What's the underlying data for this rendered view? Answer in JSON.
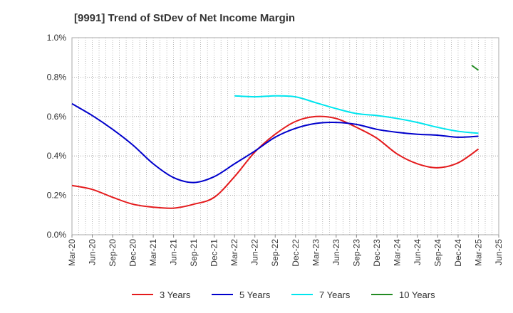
{
  "chart_data": {
    "type": "line",
    "title": "[9991]  Trend of StDev of Net Income Margin",
    "xlabel": "",
    "ylabel": "",
    "x": [
      "Mar-20",
      "Jun-20",
      "Sep-20",
      "Dec-20",
      "Mar-21",
      "Jun-21",
      "Sep-21",
      "Dec-21",
      "Mar-22",
      "Jun-22",
      "Sep-22",
      "Dec-22",
      "Mar-23",
      "Jun-23",
      "Sep-23",
      "Dec-23",
      "Mar-24",
      "Jun-24",
      "Sep-24",
      "Dec-24",
      "Mar-25",
      "Jun-25"
    ],
    "y_ticks": [
      "0.0%",
      "0.2%",
      "0.4%",
      "0.6%",
      "0.8%",
      "1.0%"
    ],
    "ylim": [
      0,
      1.0
    ],
    "y_unit": "%",
    "grid": true,
    "legend_position": "bottom",
    "series": [
      {
        "name": "3 Years",
        "color": "#e41a1c",
        "values": [
          0.25,
          0.23,
          0.19,
          0.155,
          0.14,
          0.135,
          0.155,
          0.19,
          0.295,
          0.42,
          0.51,
          0.575,
          0.6,
          0.59,
          0.545,
          0.49,
          0.41,
          0.36,
          0.34,
          0.365,
          0.435,
          null
        ]
      },
      {
        "name": "5 Years",
        "color": "#0000cc",
        "values": [
          0.665,
          0.605,
          0.535,
          0.455,
          0.36,
          0.29,
          0.265,
          0.295,
          0.36,
          0.425,
          0.495,
          0.54,
          0.565,
          0.57,
          0.56,
          0.535,
          0.52,
          0.51,
          0.505,
          0.495,
          0.5,
          null
        ]
      },
      {
        "name": "7 Years",
        "color": "#00e5ee",
        "values": [
          null,
          null,
          null,
          null,
          null,
          null,
          null,
          null,
          0.705,
          0.7,
          0.705,
          0.7,
          0.67,
          0.64,
          0.615,
          0.605,
          0.59,
          0.57,
          0.545,
          0.525,
          0.515,
          null
        ]
      },
      {
        "name": "10 Years",
        "color": "#228b22",
        "values": [
          null,
          null,
          null,
          null,
          null,
          null,
          null,
          null,
          null,
          null,
          null,
          null,
          null,
          null,
          null,
          null,
          null,
          null,
          null,
          null,
          0.86,
          null
        ],
        "segment_end": 0.835
      }
    ]
  }
}
